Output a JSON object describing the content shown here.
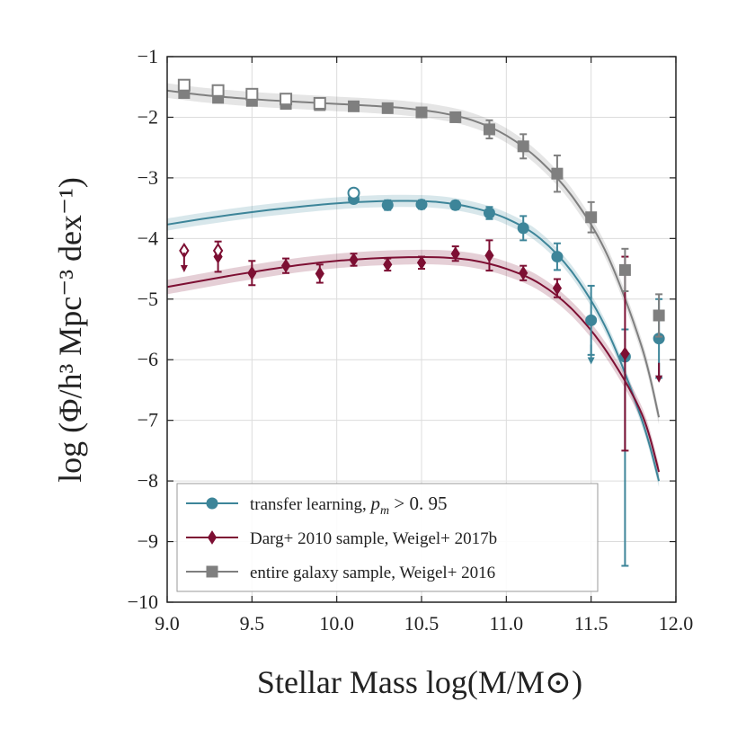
{
  "chart_data": {
    "type": "scatter",
    "title": "",
    "xlabel": "Stellar Mass log(M/M⊙)",
    "ylabel": "log (Φ/h³ Mpc⁻³ dex⁻¹)",
    "xlim": [
      9.0,
      12.0
    ],
    "ylim": [
      -10,
      -1
    ],
    "xticks": [
      9.0,
      9.5,
      10.0,
      10.5,
      11.0,
      11.5,
      12.0
    ],
    "xtick_labels": [
      "9.0",
      "9.5",
      "10.0",
      "10.5",
      "11.0",
      "11.5",
      "12.0"
    ],
    "yticks": [
      -10,
      -9,
      -8,
      -7,
      -6,
      -5,
      -4,
      -3,
      -2,
      -1
    ],
    "ytick_labels": [
      "−10",
      "−9",
      "−8",
      "−7",
      "−6",
      "−5",
      "−4",
      "−3",
      "−2",
      "−1"
    ],
    "grid": true,
    "legend_position": "bottom-left",
    "series": [
      {
        "name": "transfer learning, p_m > 0.95",
        "legend_label": "transfer learning, ",
        "legend_math": "p",
        "legend_math_sub": "m",
        "legend_math_tail": " > 0. 95",
        "color": "#3d8599",
        "marker": "circle",
        "points": [
          {
            "x": 10.1,
            "y": -3.35,
            "err": 0.05
          },
          {
            "x": 10.3,
            "y": -3.45,
            "err": 0.08
          },
          {
            "x": 10.5,
            "y": -3.44,
            "err": 0.07
          },
          {
            "x": 10.7,
            "y": -3.45,
            "err": 0.07
          },
          {
            "x": 10.9,
            "y": -3.58,
            "err": 0.1
          },
          {
            "x": 11.1,
            "y": -3.83,
            "err": 0.2
          },
          {
            "x": 11.3,
            "y": -4.3,
            "err": 0.22
          },
          {
            "x": 11.5,
            "y": -5.35,
            "err": 0.57
          },
          {
            "x": 11.7,
            "y": -5.95,
            "err": 0.45,
            "err_low": 3.45
          },
          {
            "x": 11.9,
            "y": -5.65,
            "err": 0.65
          }
        ],
        "open_points": [
          {
            "x": 10.1,
            "y": -3.25
          }
        ],
        "upper_limits": [
          {
            "x": 11.5,
            "y": -5.9
          },
          {
            "x": 11.9,
            "y": -6.2
          }
        ],
        "fit": [
          [
            9.0,
            -3.77
          ],
          [
            9.2,
            -3.68
          ],
          [
            9.4,
            -3.6
          ],
          [
            9.6,
            -3.53
          ],
          [
            9.8,
            -3.47
          ],
          [
            10.0,
            -3.42
          ],
          [
            10.2,
            -3.39
          ],
          [
            10.4,
            -3.38
          ],
          [
            10.6,
            -3.4
          ],
          [
            10.8,
            -3.49
          ],
          [
            11.0,
            -3.67
          ],
          [
            11.2,
            -4.0
          ],
          [
            11.4,
            -4.6
          ],
          [
            11.6,
            -5.55
          ],
          [
            11.8,
            -7.0
          ],
          [
            11.9,
            -8.0
          ]
        ],
        "fit_band": 0.1
      },
      {
        "name": "Darg+ 2010 sample, Weigel+ 2017b",
        "legend_label": "Darg+ 2010 sample, Weigel+ 2017b",
        "color": "#7d0f33",
        "marker": "diamond",
        "points": [
          {
            "x": 9.3,
            "y": -4.3,
            "err": 0.25
          },
          {
            "x": 9.5,
            "y": -4.57,
            "err": 0.2
          },
          {
            "x": 9.7,
            "y": -4.45,
            "err": 0.12
          },
          {
            "x": 9.9,
            "y": -4.58,
            "err": 0.15
          },
          {
            "x": 10.1,
            "y": -4.35,
            "err": 0.1
          },
          {
            "x": 10.3,
            "y": -4.43,
            "err": 0.1
          },
          {
            "x": 10.5,
            "y": -4.4,
            "err": 0.1
          },
          {
            "x": 10.7,
            "y": -4.25,
            "err": 0.12
          },
          {
            "x": 10.9,
            "y": -4.28,
            "err": 0.25
          },
          {
            "x": 11.1,
            "y": -4.57,
            "err": 0.12
          },
          {
            "x": 11.3,
            "y": -4.82,
            "err": 0.15
          },
          {
            "x": 11.7,
            "y": -5.9,
            "err": 1.6
          }
        ],
        "open_points": [
          {
            "x": 9.1,
            "y": -4.2
          },
          {
            "x": 9.3,
            "y": -4.2
          }
        ],
        "upper_limits": [
          {
            "x": 9.1,
            "y": -4.38
          },
          {
            "x": 11.9,
            "y": -6.2
          }
        ],
        "fit": [
          [
            9.0,
            -4.8
          ],
          [
            9.2,
            -4.7
          ],
          [
            9.4,
            -4.6
          ],
          [
            9.6,
            -4.51
          ],
          [
            9.8,
            -4.43
          ],
          [
            10.0,
            -4.37
          ],
          [
            10.2,
            -4.33
          ],
          [
            10.4,
            -4.31
          ],
          [
            10.6,
            -4.31
          ],
          [
            10.8,
            -4.36
          ],
          [
            11.0,
            -4.5
          ],
          [
            11.2,
            -4.75
          ],
          [
            11.4,
            -5.2
          ],
          [
            11.6,
            -5.9
          ],
          [
            11.8,
            -6.9
          ],
          [
            11.9,
            -7.85
          ]
        ],
        "fit_band": 0.12
      },
      {
        "name": "entire galaxy sample, Weigel+ 2016",
        "legend_label": "entire galaxy sample, Weigel+ 2016",
        "color": "#7f7f7f",
        "marker": "square",
        "points": [
          {
            "x": 9.1,
            "y": -1.6,
            "err": 0.05
          },
          {
            "x": 9.3,
            "y": -1.68,
            "err": 0.05
          },
          {
            "x": 9.5,
            "y": -1.73,
            "err": 0.05
          },
          {
            "x": 9.7,
            "y": -1.78,
            "err": 0.05
          },
          {
            "x": 9.9,
            "y": -1.8,
            "err": 0.05
          },
          {
            "x": 10.1,
            "y": -1.82,
            "err": 0.05
          },
          {
            "x": 10.3,
            "y": -1.85,
            "err": 0.05
          },
          {
            "x": 10.5,
            "y": -1.92,
            "err": 0.07
          },
          {
            "x": 10.7,
            "y": -2.0,
            "err": 0.07
          },
          {
            "x": 10.9,
            "y": -2.2,
            "err": 0.15
          },
          {
            "x": 11.1,
            "y": -2.48,
            "err": 0.2
          },
          {
            "x": 11.3,
            "y": -2.93,
            "err": 0.3
          },
          {
            "x": 11.5,
            "y": -3.65,
            "err": 0.25
          },
          {
            "x": 11.7,
            "y": -4.52,
            "err": 0.35
          },
          {
            "x": 11.9,
            "y": -5.27,
            "err": 0.35
          }
        ],
        "open_points": [
          {
            "x": 9.1,
            "y": -1.47
          },
          {
            "x": 9.3,
            "y": -1.56
          },
          {
            "x": 9.5,
            "y": -1.62
          },
          {
            "x": 9.7,
            "y": -1.7
          },
          {
            "x": 9.9,
            "y": -1.77
          }
        ],
        "upper_limits": [],
        "fit": [
          [
            9.0,
            -1.56
          ],
          [
            9.2,
            -1.63
          ],
          [
            9.4,
            -1.68
          ],
          [
            9.6,
            -1.72
          ],
          [
            9.8,
            -1.75
          ],
          [
            10.0,
            -1.78
          ],
          [
            10.2,
            -1.81
          ],
          [
            10.4,
            -1.85
          ],
          [
            10.6,
            -1.92
          ],
          [
            10.8,
            -2.05
          ],
          [
            11.0,
            -2.3
          ],
          [
            11.2,
            -2.72
          ],
          [
            11.4,
            -3.35
          ],
          [
            11.6,
            -4.3
          ],
          [
            11.8,
            -5.8
          ],
          [
            11.9,
            -6.95
          ]
        ],
        "fit_band": 0.12
      }
    ]
  }
}
